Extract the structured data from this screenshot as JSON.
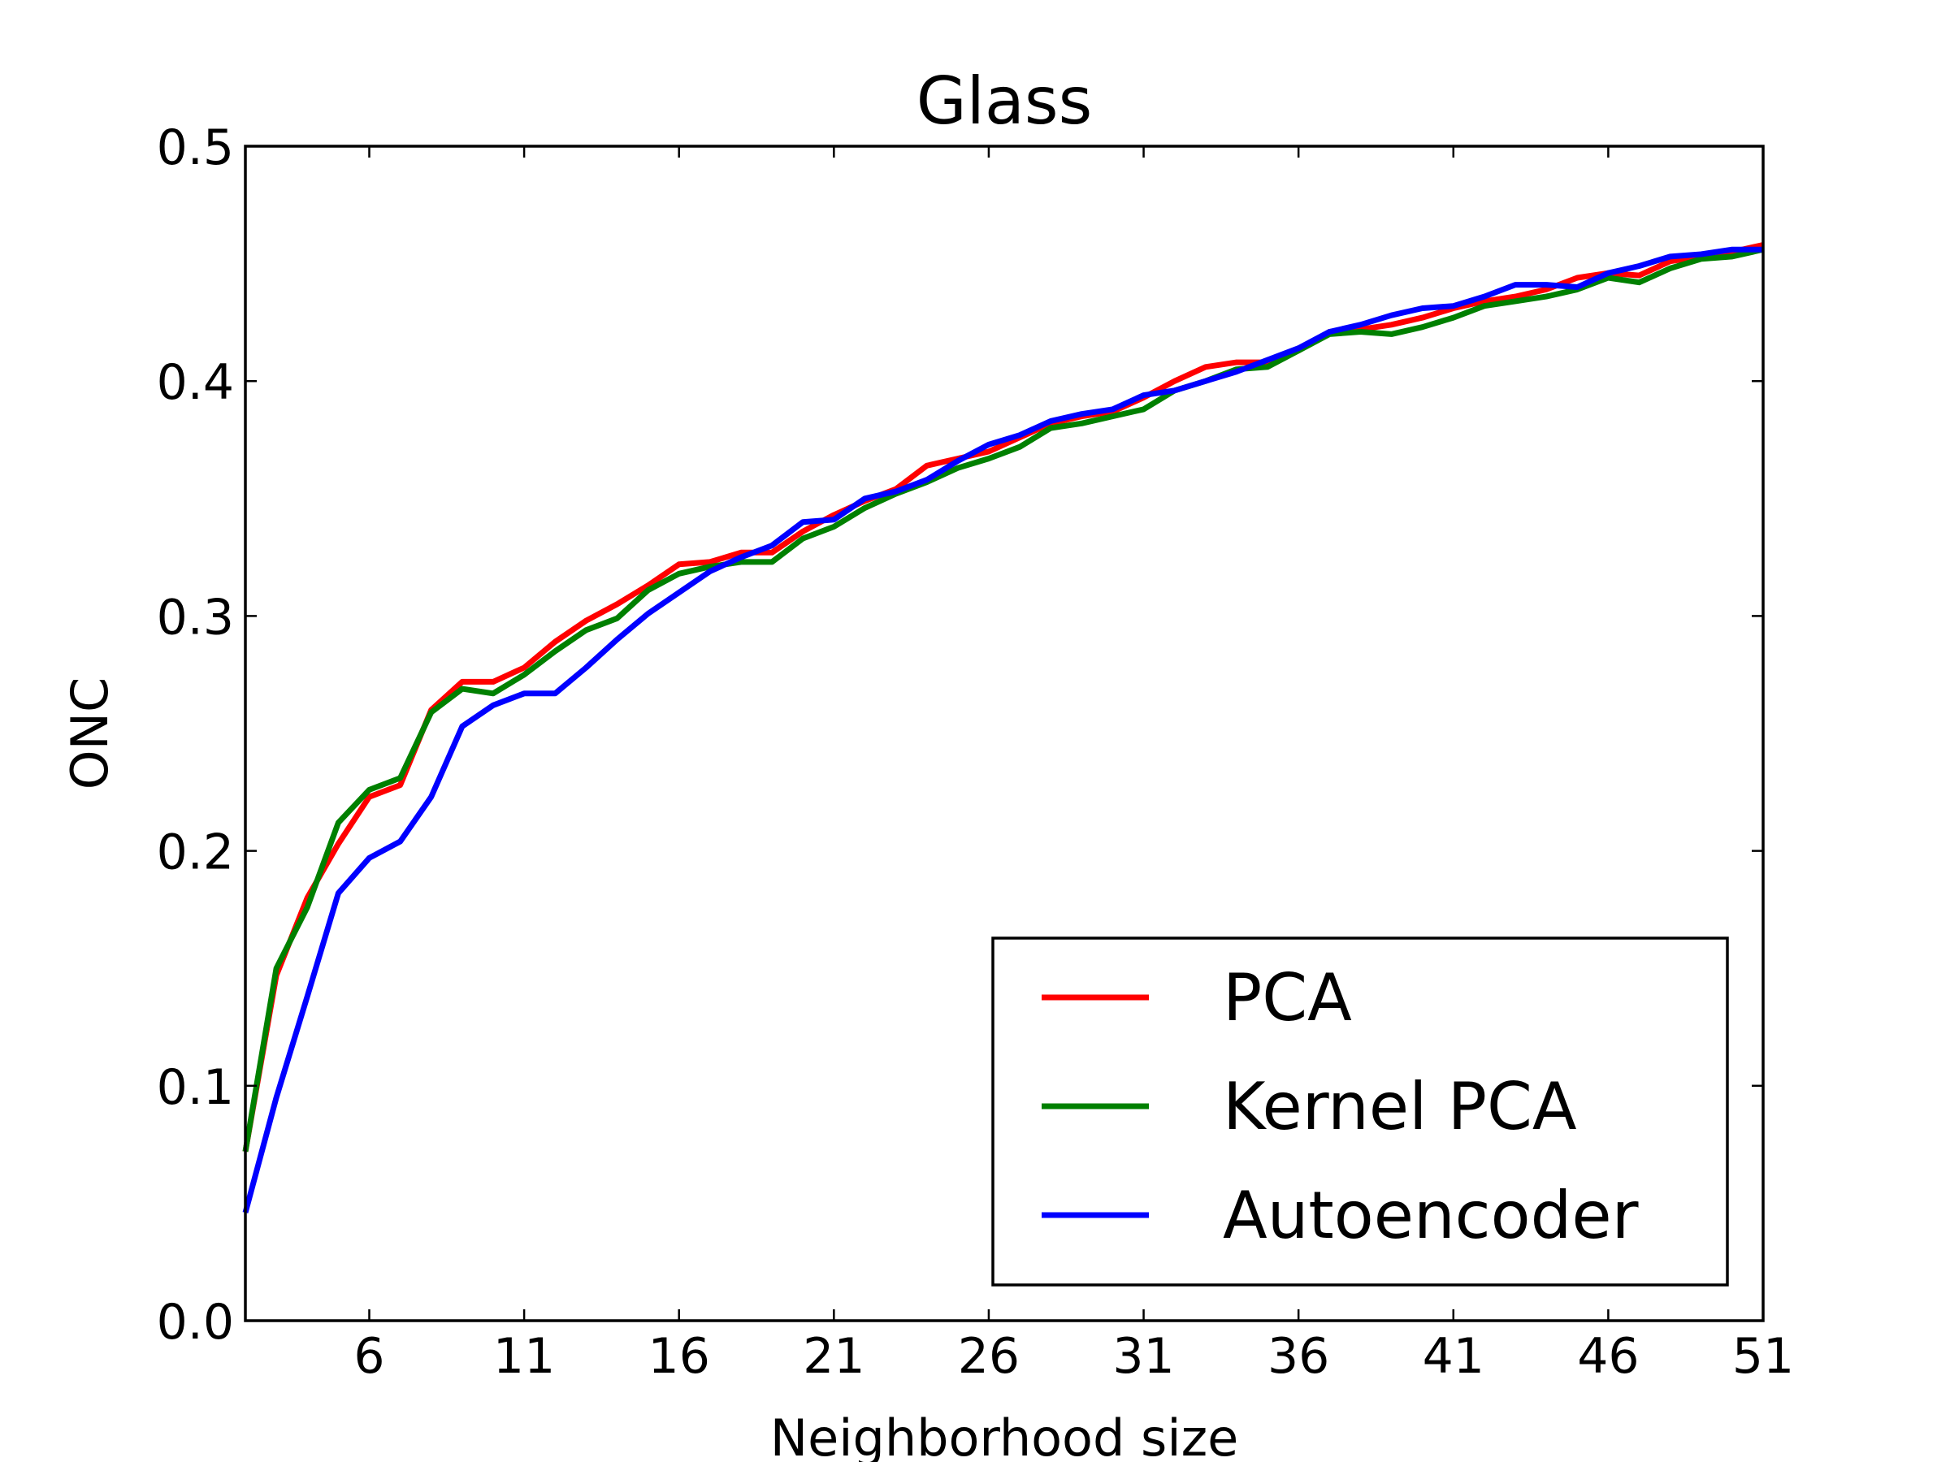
{
  "chart_data": {
    "type": "line",
    "title": "Glass",
    "xlabel": "Neighborhood size",
    "ylabel": "ONC",
    "xlim": [
      2,
      51
    ],
    "ylim": [
      0.0,
      0.5
    ],
    "x_ticks": [
      6,
      11,
      16,
      21,
      26,
      31,
      36,
      41,
      46,
      51
    ],
    "y_ticks": [
      0.0,
      0.1,
      0.2,
      0.3,
      0.4,
      0.5
    ],
    "y_tick_labels": [
      "0.0",
      "0.1",
      "0.2",
      "0.3",
      "0.4",
      "0.5"
    ],
    "grid": false,
    "legend_position": "lower-right",
    "x": [
      2,
      3,
      4,
      5,
      6,
      7,
      8,
      9,
      10,
      11,
      12,
      13,
      14,
      15,
      16,
      17,
      18,
      19,
      20,
      21,
      22,
      23,
      24,
      25,
      26,
      27,
      28,
      29,
      30,
      31,
      32,
      33,
      34,
      35,
      36,
      37,
      38,
      39,
      40,
      41,
      42,
      43,
      44,
      45,
      46,
      47,
      48,
      49,
      50,
      51
    ],
    "series": [
      {
        "name": "PCA",
        "color": "#ff0000",
        "values": [
          0.072,
          0.147,
          0.18,
          0.203,
          0.223,
          0.228,
          0.26,
          0.272,
          0.272,
          0.278,
          0.289,
          0.298,
          0.305,
          0.313,
          0.322,
          0.323,
          0.327,
          0.327,
          0.336,
          0.343,
          0.349,
          0.354,
          0.364,
          0.367,
          0.37,
          0.376,
          0.382,
          0.385,
          0.387,
          0.393,
          0.4,
          0.406,
          0.408,
          0.408,
          0.413,
          0.421,
          0.422,
          0.424,
          0.427,
          0.431,
          0.434,
          0.436,
          0.439,
          0.444,
          0.446,
          0.445,
          0.451,
          0.453,
          0.455,
          0.458
        ]
      },
      {
        "name": "Kernel PCA",
        "color": "#008000",
        "values": [
          0.072,
          0.15,
          0.176,
          0.212,
          0.226,
          0.231,
          0.259,
          0.269,
          0.267,
          0.275,
          0.285,
          0.294,
          0.299,
          0.311,
          0.318,
          0.321,
          0.323,
          0.323,
          0.333,
          0.338,
          0.346,
          0.352,
          0.357,
          0.363,
          0.367,
          0.372,
          0.38,
          0.382,
          0.385,
          0.388,
          0.396,
          0.4,
          0.405,
          0.406,
          0.413,
          0.42,
          0.421,
          0.42,
          0.423,
          0.427,
          0.432,
          0.434,
          0.436,
          0.439,
          0.444,
          0.442,
          0.448,
          0.452,
          0.453,
          0.456
        ]
      },
      {
        "name": "Autoencoder",
        "color": "#0000ff",
        "values": [
          0.046,
          0.095,
          0.138,
          0.182,
          0.197,
          0.204,
          0.223,
          0.253,
          0.262,
          0.267,
          0.267,
          0.278,
          0.29,
          0.301,
          0.31,
          0.319,
          0.325,
          0.33,
          0.34,
          0.341,
          0.35,
          0.353,
          0.358,
          0.366,
          0.373,
          0.377,
          0.383,
          0.386,
          0.388,
          0.394,
          0.396,
          0.4,
          0.404,
          0.409,
          0.414,
          0.421,
          0.424,
          0.428,
          0.431,
          0.432,
          0.436,
          0.441,
          0.441,
          0.44,
          0.446,
          0.449,
          0.453,
          0.454,
          0.456,
          0.456
        ]
      }
    ]
  }
}
